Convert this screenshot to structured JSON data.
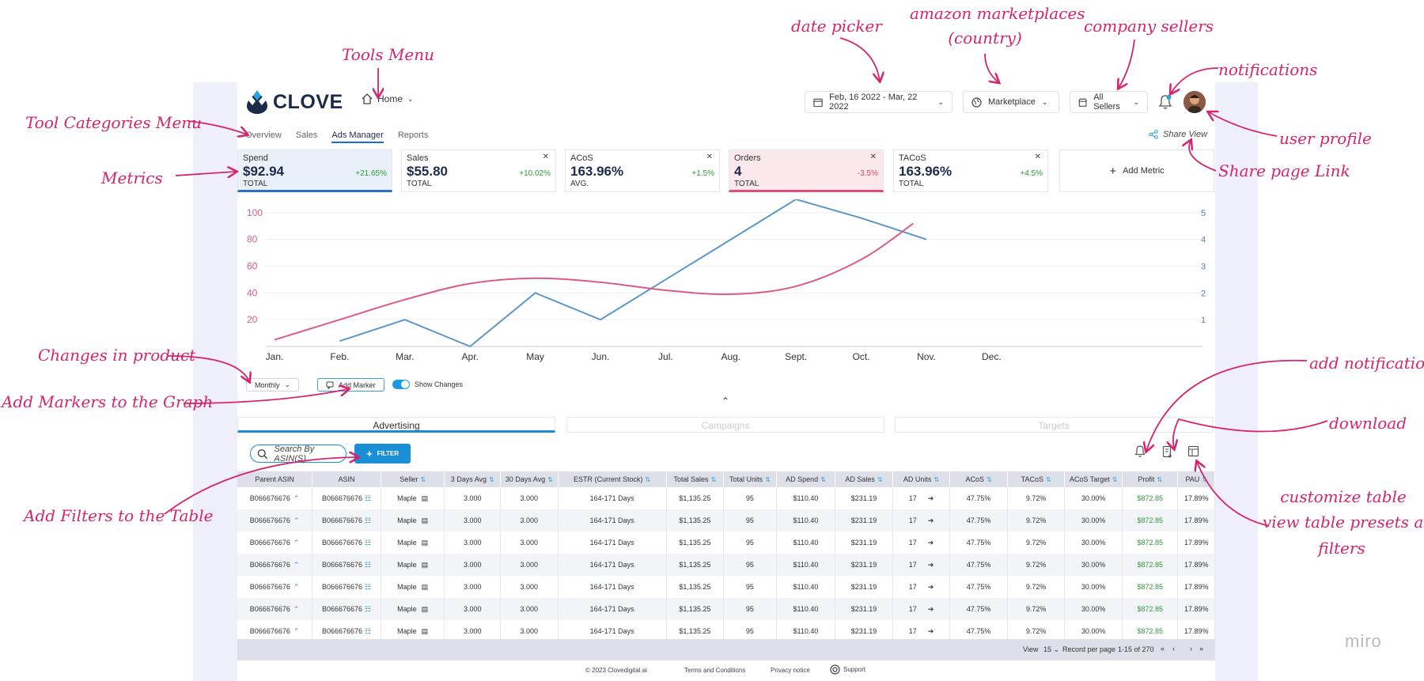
{
  "annotations": {
    "tools_menu": "Tools Menu",
    "date_picker": "date picker",
    "amazon_marketplaces": "amazon marketplaces",
    "country": "(country)",
    "company_sellers": "company sellers",
    "notifications": "notifications",
    "user_profile": "user profile",
    "share_page_link": "Share page Link",
    "tool_categories_menu": "Tool Categories Menu",
    "metrics": "Metrics",
    "changes_in_product": "Changes in product",
    "add_markers": "Add Markers to the Graph",
    "add_notifications": "add notifications",
    "download": "download",
    "customize_table": "customize table",
    "view_presets_1": "view table presets and",
    "view_presets_2": "filters",
    "add_filters": "Add Filters to the Table"
  },
  "header": {
    "logo": "CLOVE",
    "home": "Home",
    "date_range": "Feb, 16 2022 - Mar, 22 2022",
    "marketplace": "Marketplace",
    "sellers": "All Sellers"
  },
  "tabs": [
    "Overview",
    "Sales",
    "Ads Manager",
    "Reports"
  ],
  "share_view": "Share View",
  "metrics": [
    {
      "name": "Spend",
      "value": "$92.94",
      "change": "+21.65%",
      "type": "TOTAL",
      "positive": true
    },
    {
      "name": "Sales",
      "value": "$55.80",
      "change": "+10.02%",
      "type": "TOTAL",
      "positive": true
    },
    {
      "name": "ACoS",
      "value": "163.96%",
      "change": "+1.5%",
      "type": "AVG.",
      "positive": true
    },
    {
      "name": "Orders",
      "value": "4",
      "change": "-3.5%",
      "type": "TOTAL",
      "positive": false
    },
    {
      "name": "TACoS",
      "value": "163.96%",
      "change": "+4.5%",
      "type": "TOTAL",
      "positive": true
    }
  ],
  "add_metric": "Add Metric",
  "chart_data": {
    "type": "line",
    "categories": [
      "Jan.",
      "Feb.",
      "Mar.",
      "Apr.",
      "May",
      "Jun.",
      "Jul.",
      "Aug.",
      "Sept.",
      "Oct.",
      "Nov.",
      "Dec."
    ],
    "y_left_ticks": [
      "20",
      "40",
      "60",
      "80",
      "100"
    ],
    "y_right_ticks": [
      "1",
      "2",
      "3",
      "4",
      "5"
    ],
    "ylim_left": [
      0,
      110
    ],
    "ylim_right": [
      0,
      5.5
    ],
    "series": [
      {
        "axis": "right",
        "color": "#5b97c9",
        "x": [
          1,
          2,
          3,
          4,
          5,
          6,
          7,
          8,
          9,
          10
        ],
        "values": [
          0.2,
          1.0,
          0.0,
          2.0,
          1.0,
          2.5,
          4.0,
          5.5,
          4.8,
          4.0
        ]
      },
      {
        "axis": "left",
        "color": "#de5a86",
        "curve": true,
        "x": [
          0,
          1,
          2,
          3,
          4,
          5,
          6,
          7,
          8,
          9,
          9.8
        ],
        "values": [
          5,
          20,
          35,
          47,
          51,
          48,
          42,
          39,
          45,
          65,
          92
        ]
      }
    ]
  },
  "chart_controls": {
    "granularity": "Monthly",
    "add_marker": "Add Marker",
    "show_changes": "Show Changes"
  },
  "subtabs": [
    "Advertising",
    "Campaigns",
    "Targets"
  ],
  "search_placeholder": "Search By ASIN(S)",
  "filter_label": "FILTER",
  "table": {
    "columns": [
      "Parent ASIN",
      "ASIN",
      "Seller",
      "3 Days Avg",
      "30 Days Avg",
      "ESTR (Current Stock)",
      "Total Sales",
      "Total Units",
      "AD Spend",
      "AD Sales",
      "AD Units",
      "ACoS",
      "TACoS",
      "ACoS Target",
      "Profit",
      "PAU"
    ],
    "rows": [
      [
        "B066676676",
        "B066676676",
        "Maple",
        "3.000",
        "3.000",
        "164-171 Days",
        "$1,135.25",
        "95",
        "$110.40",
        "$231.19",
        "17",
        "47.75%",
        "9.72%",
        "30.00%",
        "$872.85",
        "17.89%"
      ],
      [
        "B066676676",
        "B066676676",
        "Maple",
        "3.000",
        "3.000",
        "164-171 Days",
        "$1,135.25",
        "95",
        "$110.40",
        "$231.19",
        "17",
        "47.75%",
        "9.72%",
        "30.00%",
        "$872.85",
        "17.89%"
      ],
      [
        "B066676676",
        "B066676676",
        "Maple",
        "3.000",
        "3.000",
        "164-171 Days",
        "$1,135.25",
        "95",
        "$110.40",
        "$231.19",
        "17",
        "47.75%",
        "9.72%",
        "30.00%",
        "$872.85",
        "17.89%"
      ],
      [
        "B066676676",
        "B066676676",
        "Maple",
        "3.000",
        "3.000",
        "164-171 Days",
        "$1,135.25",
        "95",
        "$110.40",
        "$231.19",
        "17",
        "47.75%",
        "9.72%",
        "30.00%",
        "$872.85",
        "17.89%"
      ],
      [
        "B066676676",
        "B066676676",
        "Maple",
        "3.000",
        "3.000",
        "164-171 Days",
        "$1,135.25",
        "95",
        "$110.40",
        "$231.19",
        "17",
        "47.75%",
        "9.72%",
        "30.00%",
        "$872.85",
        "17.89%"
      ],
      [
        "B066676676",
        "B066676676",
        "Maple",
        "3.000",
        "3.000",
        "164-171 Days",
        "$1,135.25",
        "95",
        "$110.40",
        "$231.19",
        "17",
        "47.75%",
        "9.72%",
        "30.00%",
        "$872.85",
        "17.89%"
      ],
      [
        "B066676676",
        "B066676676",
        "Maple",
        "3.000",
        "3.000",
        "164-171 Days",
        "$1,135.25",
        "95",
        "$110.40",
        "$231.19",
        "17",
        "47.75%",
        "9.72%",
        "30.00%",
        "$872.85",
        "17.89%"
      ]
    ]
  },
  "pager": {
    "view_label": "View",
    "per_page": "15",
    "record_label": "Record per page",
    "range": "1-15 of 270"
  },
  "footer": {
    "copyright": "© 2023 Clovedigital.ai",
    "terms": "Terms and Conditions",
    "privacy": "Privacy notice",
    "support": "Support"
  },
  "watermark": "miro",
  "colors": {
    "annotation": "#d6246e",
    "accent": "#1b8fd6",
    "navy": "#1c2b4a"
  }
}
